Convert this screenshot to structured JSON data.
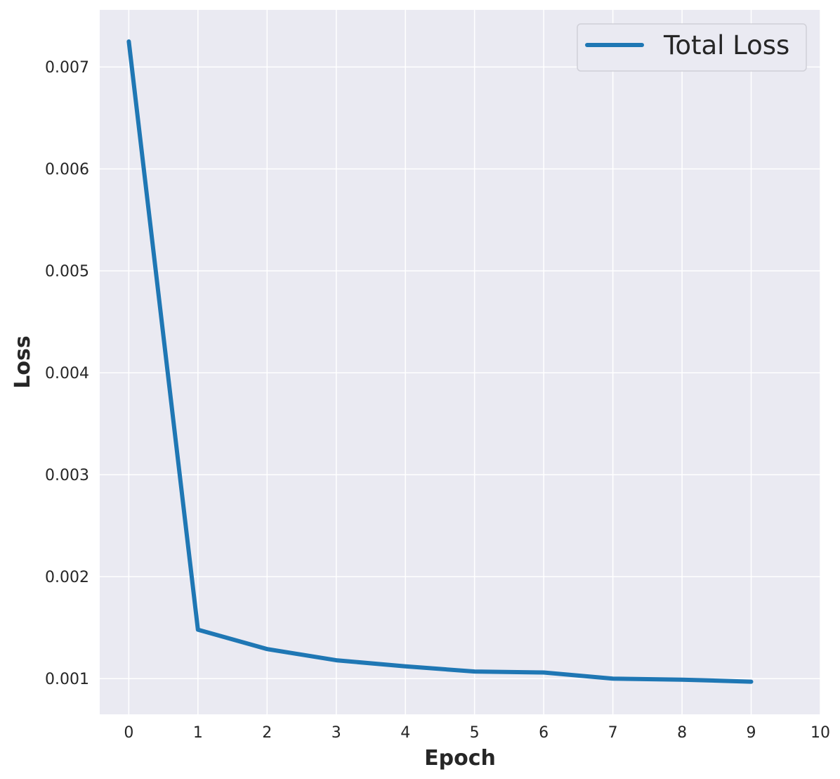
{
  "chart_data": {
    "type": "line",
    "xlabel": "Epoch",
    "ylabel": "Loss",
    "xlim": [
      -0.42,
      10
    ],
    "ylim": [
      0.00065,
      0.00756
    ],
    "xticks": [
      "0",
      "1",
      "2",
      "3",
      "4",
      "5",
      "6",
      "7",
      "8",
      "9",
      "10"
    ],
    "yticks": [
      "0.001",
      "0.002",
      "0.003",
      "0.004",
      "0.005",
      "0.006",
      "0.007"
    ],
    "grid": true,
    "legend_position": "top-right",
    "series": [
      {
        "name": "Total Loss",
        "color": "#1f77b4",
        "x": [
          0,
          1,
          2,
          3,
          4,
          5,
          6,
          7,
          8,
          9
        ],
        "y": [
          0.00725,
          0.00148,
          0.00129,
          0.00118,
          0.00112,
          0.00107,
          0.00106,
          0.001,
          0.00099,
          0.00097
        ]
      }
    ]
  },
  "colors": {
    "plot_background": "#eaeaf2",
    "grid": "#ffffff",
    "text": "#262626"
  }
}
